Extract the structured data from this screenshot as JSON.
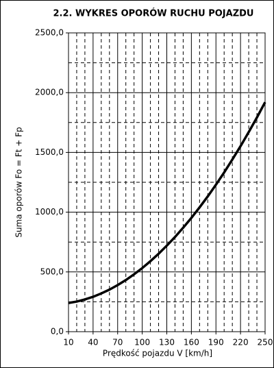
{
  "chart_data": {
    "type": "line",
    "title": "2.2. WYKRES OPORÓW RUCHU POJAZDU",
    "x_label": "Prędkość pojazdu V [km/h]",
    "y_label": "Suma oporów Fo = Ft + Fp",
    "x": [
      10,
      20,
      30,
      40,
      50,
      60,
      70,
      80,
      90,
      100,
      110,
      120,
      130,
      140,
      150,
      160,
      170,
      180,
      190,
      200,
      210,
      220,
      230,
      240,
      250
    ],
    "values": [
      240,
      252,
      270,
      292,
      320,
      352,
      390,
      432,
      480,
      532,
      590,
      652,
      720,
      792,
      870,
      952,
      1040,
      1132,
      1230,
      1332,
      1440,
      1552,
      1670,
      1792,
      1920
    ],
    "color": "#000000",
    "xlim": [
      10,
      250
    ],
    "xticks": [
      10,
      40,
      70,
      100,
      130,
      160,
      190,
      220,
      250
    ],
    "xminorticks": [
      20,
      30,
      50,
      60,
      80,
      90,
      110,
      120,
      140,
      150,
      170,
      180,
      200,
      210,
      230,
      240
    ],
    "ylim": [
      0,
      2500
    ],
    "yticks": [
      {
        "value": 0,
        "label": "0,0"
      },
      {
        "value": 500,
        "label": "500,0"
      },
      {
        "value": 1000,
        "label": "1000,0"
      },
      {
        "value": 1500,
        "label": "1500,0"
      },
      {
        "value": 2000,
        "label": "2000,0"
      },
      {
        "value": 2500,
        "label": "2500,0"
      }
    ],
    "yminorticks": [
      250,
      750,
      1250,
      1750,
      2250
    ],
    "grid": true
  }
}
